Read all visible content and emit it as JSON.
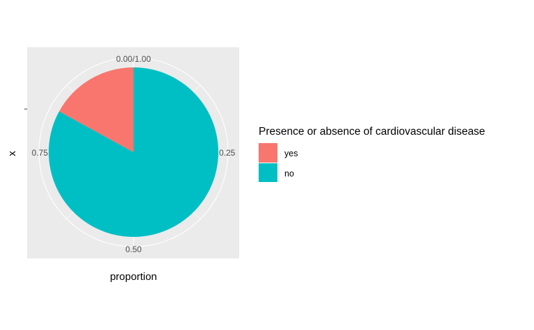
{
  "chart_data": {
    "type": "pie",
    "x_axis_title": "proportion",
    "y_axis_title": "x",
    "theta_tick_labels": [
      "0.00/1.00",
      "0.25",
      "0.50",
      "0.75"
    ],
    "theta_tick_values": [
      0,
      0.25,
      0.5,
      0.75
    ],
    "slices": [
      {
        "label": "yes",
        "value": 0.17,
        "color": "#F8766D"
      },
      {
        "label": "no",
        "value": 0.83,
        "color": "#00BFC4"
      }
    ],
    "legend": {
      "title": "Presence or absence of cardiovascular disease",
      "position": "right",
      "items": [
        "yes",
        "no"
      ]
    },
    "panel_background": "#EBEBEB",
    "grid_color": "#FFFFFF"
  }
}
